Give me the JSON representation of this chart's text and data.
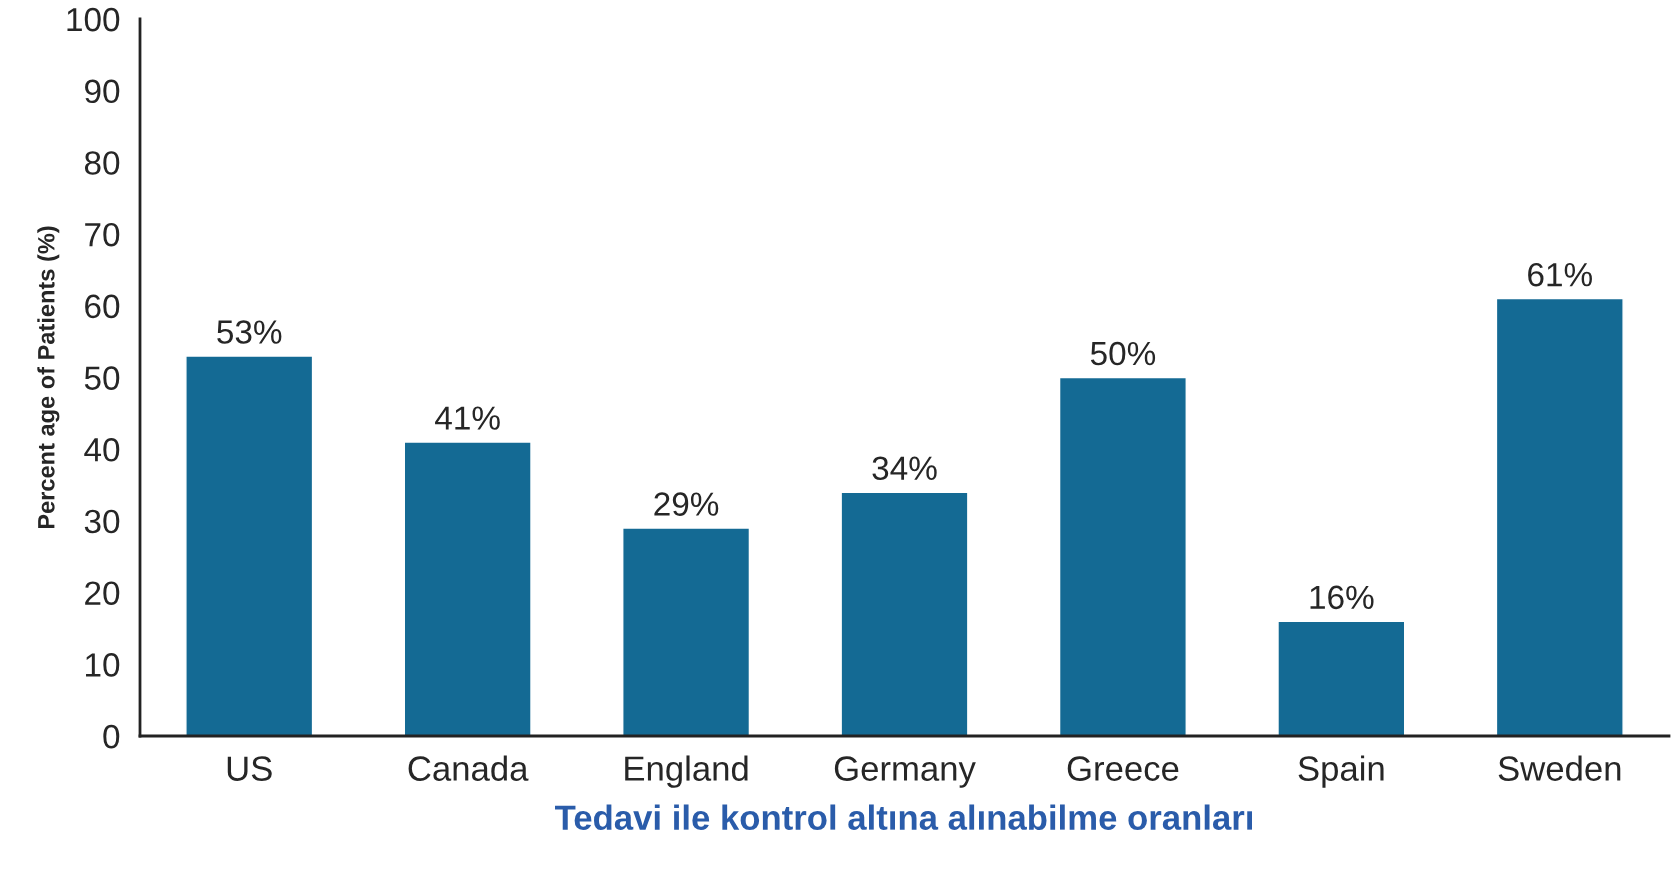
{
  "chart_data": {
    "type": "bar",
    "xlabel": "Tedavi ile kontrol altına alınabilme oranları",
    "ylabel": "Percent age of Patients (%)",
    "categories": [
      "US",
      "Canada",
      "England",
      "Germany",
      "Greece",
      "Spain",
      "Sweden"
    ],
    "values": [
      53,
      41,
      29,
      34,
      50,
      16,
      61
    ],
    "value_labels": [
      "53%",
      "41%",
      "29%",
      "34%",
      "50%",
      "16%",
      "61%"
    ],
    "color": "#146a94",
    "ylim": [
      0,
      100
    ],
    "yticks": [
      0,
      10,
      20,
      30,
      40,
      50,
      60,
      70,
      80,
      90,
      100
    ],
    "grid": false,
    "legend": false
  }
}
